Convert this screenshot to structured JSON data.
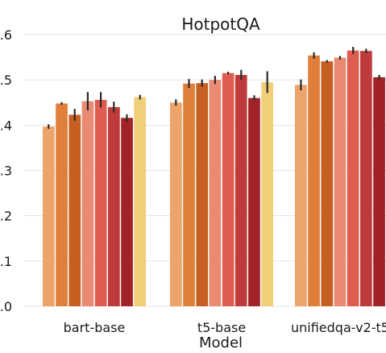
{
  "chart_data": {
    "type": "bar",
    "title": "HotpotQA",
    "xlabel": "Model",
    "ylabel": "",
    "ylim": [
      0.0,
      0.6
    ],
    "yticks": [
      0.0,
      0.1,
      0.2,
      0.3,
      0.4,
      0.5,
      0.6
    ],
    "ytick_labels": [
      ".0",
      ".1",
      ".2",
      ".3",
      ".4",
      ".5",
      ".6"
    ],
    "grid": true,
    "categories": [
      "bart-base",
      "t5-base",
      "unifiedqa-v2-t5"
    ],
    "series": [
      {
        "color": "#EDA46B",
        "values": [
          0.397,
          0.45,
          0.489
        ],
        "errors": [
          0.005,
          0.007,
          0.012
        ]
      },
      {
        "color": "#E07F3C",
        "values": [
          0.448,
          0.492,
          0.554
        ],
        "errors": [
          0.003,
          0.01,
          0.007
        ]
      },
      {
        "color": "#C85F22",
        "values": [
          0.423,
          0.493,
          0.541
        ],
        "errors": [
          0.013,
          0.008,
          0.003
        ]
      },
      {
        "color": "#EB8A72",
        "values": [
          0.453,
          0.5,
          0.549
        ],
        "errors": [
          0.02,
          0.009,
          0.004
        ]
      },
      {
        "color": "#DF5C51",
        "values": [
          0.456,
          0.515,
          0.565
        ],
        "errors": [
          0.017,
          0.003,
          0.008
        ]
      },
      {
        "color": "#BF3A3A",
        "values": [
          0.44,
          0.511,
          0.564
        ],
        "errors": [
          0.012,
          0.011,
          0.005
        ]
      },
      {
        "color": "#A22327",
        "values": [
          0.416,
          0.46,
          0.506
        ],
        "errors": [
          0.008,
          0.006,
          0.005
        ]
      },
      {
        "color": "#F1CE78",
        "values": [
          0.462,
          0.495,
          null
        ],
        "errors": [
          0.005,
          0.024,
          null
        ]
      }
    ]
  }
}
